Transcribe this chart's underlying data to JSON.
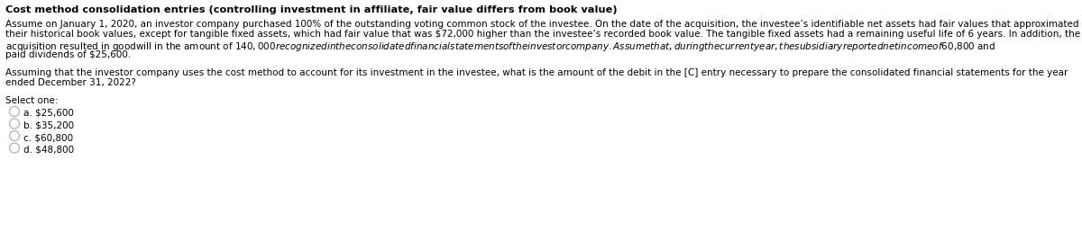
{
  "title": "Cost method consolidation entries (controlling investment in affiliate, fair value differs from book value)",
  "paragraph1_line1": "Assume on January 1, 2020, an investor company purchased 100% of the outstanding voting common stock of the investee. On the date of the acquisition, the investee’s identifiable net assets had fair values that approximated",
  "paragraph1_line2": "their historical book values, except for tangible fixed assets, which had fair value that was $72,000 higher than the investee’s recorded book value. The tangible fixed assets had a remaining useful life of 6 years. In addition, the",
  "paragraph1_line3": "acquisition resulted in goodwill in the amount of $140,000 recognized in the consolidated financial statements of the investor company. Assume that, during the current year, the subsidiary reported net income of $60,800 and",
  "paragraph1_line4": "paid dividends of $25,600.",
  "paragraph2_line1": "Assuming that the investor company uses the cost method to account for its investment in the investee, what is the amount of the debit in the [C] entry necessary to prepare the consolidated financial statements for the year",
  "paragraph2_line2": "ended December 31, 2022?",
  "select_one": "Select one:",
  "options": [
    "a. $25,600",
    "b. $35,200",
    "c. $60,800",
    "d. $48,800"
  ],
  "bg_color": "#ffffff",
  "text_color": "#000000",
  "title_fontsize": 8.2,
  "body_fontsize": 7.5,
  "select_fontsize": 7.5,
  "option_fontsize": 7.5
}
